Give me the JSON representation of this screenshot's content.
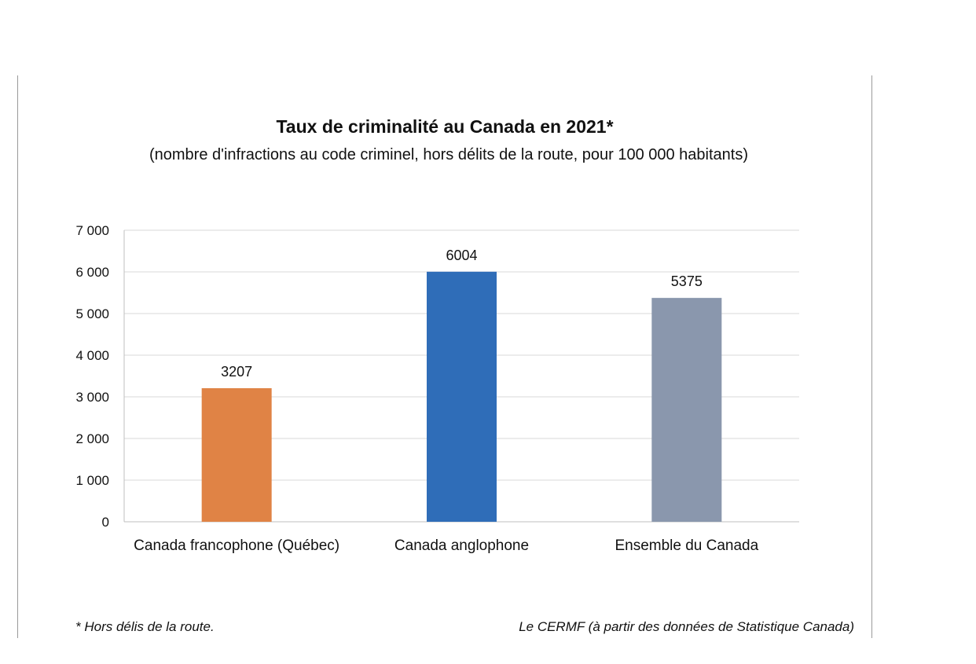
{
  "chart_data": {
    "type": "bar",
    "title": "Taux de criminalité au Canada en 2021*",
    "subtitle": "(nombre d'infractions au code criminel, hors délits de la route, pour 100 000 habitants)",
    "categories": [
      "Canada francophone (Québec)",
      "Canada anglophone",
      "Ensemble du Canada"
    ],
    "values": [
      3207,
      6004,
      5375
    ],
    "data_labels": [
      "3207",
      "6004",
      "5375"
    ],
    "colors": [
      "#E08345",
      "#2F6DB8",
      "#8A97AD"
    ],
    "ylim": [
      0,
      7000
    ],
    "yticks": [
      0,
      1000,
      2000,
      3000,
      4000,
      5000,
      6000,
      7000
    ],
    "ytick_labels": [
      "0",
      "1 000",
      "2 000",
      "3 000",
      "4 000",
      "5 000",
      "6 000",
      "7 000"
    ],
    "grid": true,
    "legend": "none",
    "xlabel": "",
    "ylabel": ""
  },
  "footer": {
    "note": "* Hors délis de la route.",
    "source": "Le CERMF (à partir des données de Statistique Canada)"
  }
}
